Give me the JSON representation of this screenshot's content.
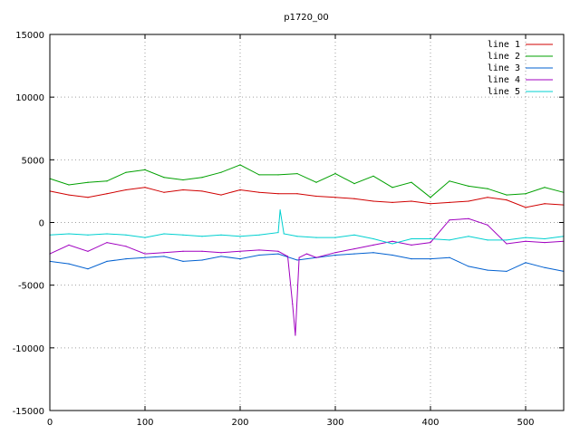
{
  "chart_data": {
    "type": "line",
    "title": "p1720_00",
    "xlabel": "",
    "ylabel": "",
    "xlim": [
      0,
      540
    ],
    "ylim": [
      -15000,
      15000
    ],
    "xticks": [
      0,
      100,
      200,
      300,
      400,
      500
    ],
    "yticks": [
      -15000,
      -10000,
      -5000,
      0,
      5000,
      10000,
      15000
    ],
    "grid": true,
    "legend_position": "top-right",
    "series": [
      {
        "name": "line 1",
        "color": "#d00000",
        "x": [
          0,
          20,
          40,
          60,
          80,
          100,
          120,
          140,
          160,
          180,
          200,
          220,
          240,
          260,
          280,
          300,
          320,
          340,
          360,
          380,
          400,
          420,
          440,
          460,
          480,
          500,
          520,
          540
        ],
        "y": [
          2500,
          2200,
          2000,
          2300,
          2600,
          2800,
          2400,
          2600,
          2500,
          2200,
          2600,
          2400,
          2300,
          2300,
          2100,
          2000,
          1900,
          1700,
          1600,
          1700,
          1500,
          1600,
          1700,
          2000,
          1800,
          1200,
          1500,
          1400
        ]
      },
      {
        "name": "line 2",
        "color": "#00a000",
        "x": [
          0,
          20,
          40,
          60,
          80,
          100,
          120,
          140,
          160,
          180,
          200,
          220,
          240,
          260,
          280,
          300,
          320,
          340,
          360,
          380,
          400,
          420,
          440,
          460,
          480,
          500,
          520,
          540
        ],
        "y": [
          3500,
          3000,
          3200,
          3300,
          4000,
          4200,
          3600,
          3400,
          3600,
          4000,
          4600,
          3800,
          3800,
          3900,
          3200,
          3900,
          3100,
          3700,
          2800,
          3200,
          2000,
          3300,
          2900,
          2700,
          2200,
          2300,
          2800,
          2400
        ]
      },
      {
        "name": "line 3",
        "color": "#0060d0",
        "x": [
          0,
          20,
          40,
          60,
          80,
          100,
          120,
          140,
          160,
          180,
          200,
          220,
          240,
          260,
          280,
          300,
          320,
          340,
          360,
          380,
          400,
          420,
          440,
          460,
          480,
          500,
          520,
          540
        ],
        "y": [
          -3100,
          -3300,
          -3700,
          -3100,
          -2900,
          -2800,
          -2700,
          -3100,
          -3000,
          -2700,
          -2900,
          -2600,
          -2500,
          -3000,
          -2800,
          -2600,
          -2500,
          -2400,
          -2600,
          -2900,
          -2900,
          -2800,
          -3500,
          -3800,
          -3900,
          -3200,
          -3600,
          -3900
        ]
      },
      {
        "name": "line 4",
        "color": "#a000c0",
        "x": [
          0,
          20,
          40,
          60,
          80,
          100,
          120,
          140,
          160,
          180,
          200,
          220,
          240,
          250,
          255,
          258,
          262,
          270,
          280,
          300,
          320,
          340,
          360,
          380,
          400,
          420,
          440,
          460,
          480,
          500,
          520,
          540
        ],
        "y": [
          -2500,
          -1800,
          -2300,
          -1600,
          -1900,
          -2500,
          -2400,
          -2300,
          -2300,
          -2400,
          -2300,
          -2200,
          -2300,
          -2700,
          -6500,
          -9000,
          -2800,
          -2500,
          -2800,
          -2400,
          -2100,
          -1800,
          -1500,
          -1800,
          -1600,
          200,
          300,
          -200,
          -1700,
          -1500,
          -1600,
          -1500
        ]
      },
      {
        "name": "line 5",
        "color": "#00d0d0",
        "x": [
          0,
          20,
          40,
          60,
          80,
          100,
          120,
          140,
          160,
          180,
          200,
          220,
          240,
          242,
          246,
          260,
          280,
          300,
          320,
          340,
          360,
          380,
          400,
          420,
          440,
          460,
          480,
          500,
          520,
          540
        ],
        "y": [
          -1000,
          -900,
          -1000,
          -900,
          -1000,
          -1200,
          -900,
          -1000,
          -1100,
          -1000,
          -1100,
          -1000,
          -800,
          1000,
          -900,
          -1100,
          -1200,
          -1200,
          -1000,
          -1300,
          -1700,
          -1300,
          -1300,
          -1400,
          -1100,
          -1400,
          -1400,
          -1200,
          -1300,
          -1100
        ]
      }
    ]
  }
}
